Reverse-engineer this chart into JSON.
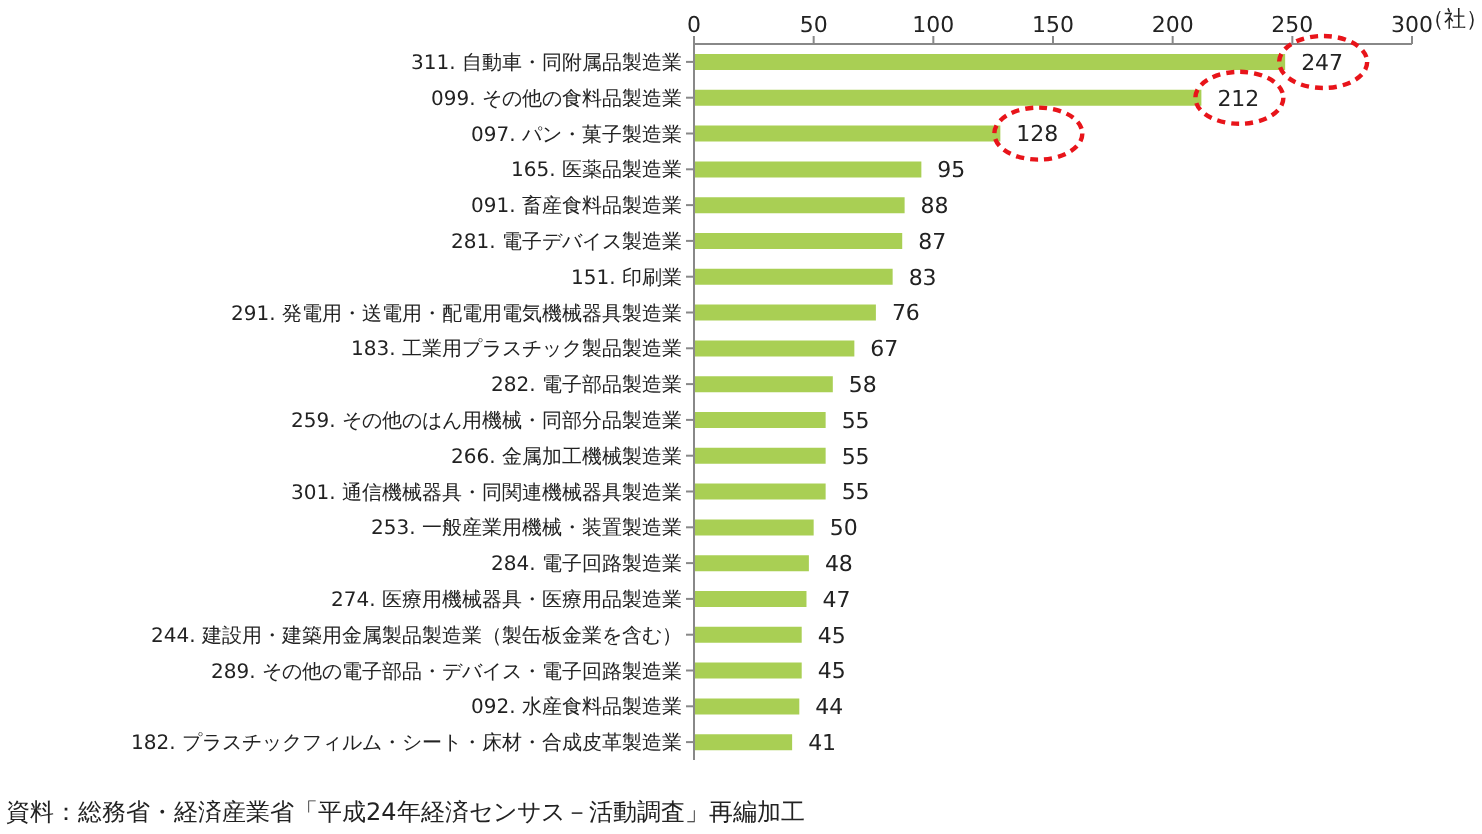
{
  "chart_data": {
    "type": "bar",
    "orientation": "horizontal",
    "categories": [
      "311. 自動車・同附属品製造業",
      "099. その他の食料品製造業",
      "097. パン・菓子製造業",
      "165. 医薬品製造業",
      "091. 畜産食料品製造業",
      "281. 電子デバイス製造業",
      "151. 印刷業",
      "291. 発電用・送電用・配電用電気機械器具製造業",
      "183. 工業用プラスチック製品製造業",
      "282. 電子部品製造業",
      "259. その他のはん用機械・同部分品製造業",
      "266. 金属加工機械製造業",
      "301. 通信機械器具・同関連機械器具製造業",
      "253. 一般産業用機械・装置製造業",
      "284. 電子回路製造業",
      "274. 医療用機械器具・医療用品製造業",
      "244. 建設用・建築用金属製品製造業（製缶板金業を含む）",
      "289. その他の電子部品・デバイス・電子回路製造業",
      "092. 水産食料品製造業",
      "182. プラスチックフィルム・シート・床材・合成皮革製造業"
    ],
    "values": [
      247,
      212,
      128,
      95,
      88,
      87,
      83,
      76,
      67,
      58,
      55,
      55,
      55,
      50,
      48,
      47,
      45,
      45,
      44,
      41
    ],
    "color": "#a9cf54",
    "xlim": [
      0,
      300
    ],
    "xticks": [
      0,
      50,
      100,
      150,
      200,
      250,
      300
    ],
    "xlabel": "（社）",
    "data_labels": true,
    "grid": false,
    "legend": false,
    "annotations": [
      "資料：総務省・経済産業省「平成24年経済センサス－活動調査」再編加工"
    ]
  }
}
